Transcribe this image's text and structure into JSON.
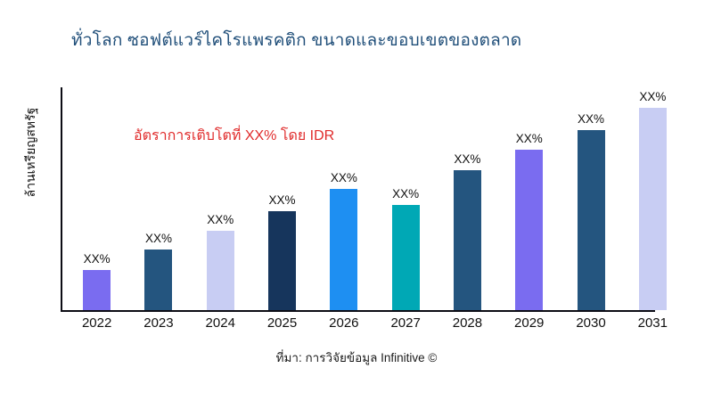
{
  "header": {
    "title": "ทั่วโลก ซอฟต์แวร์ไคโรแพรคติก ขนาดและขอบเขตของตลาด",
    "title_color": "#1f4e79"
  },
  "chart_data": {
    "type": "bar",
    "title": "ทั่วโลก ซอฟต์แวร์ไคโรแพรคติก ขนาดและขอบเขตของตลาด",
    "xlabel": "",
    "ylabel": "ล้านเหรียญสหรัฐ",
    "categories": [
      "2022",
      "2023",
      "2024",
      "2025",
      "2026",
      "2027",
      "2028",
      "2029",
      "2030",
      "2031"
    ],
    "values": [
      20,
      30,
      39,
      49,
      60,
      52,
      69,
      79,
      89,
      100
    ],
    "ylim": [
      0,
      110
    ],
    "grid": false,
    "legend": false,
    "bar_labels": [
      "XX%",
      "XX%",
      "XX%",
      "XX%",
      "XX%",
      "XX%",
      "XX%",
      "XX%",
      "XX%",
      "XX%"
    ],
    "bar_colors": [
      "#7a6cf0",
      "#24557f",
      "#c8cdf3",
      "#16355c",
      "#1e8ff2",
      "#00a8b5",
      "#24557f",
      "#7a6cf0",
      "#24557f",
      "#c8cdf3"
    ],
    "annotation": {
      "text": "อัตราการเติบโตที่ XX% โดย IDR",
      "color": "#e02b2b"
    }
  },
  "footer": {
    "source": "ที่มา: การวิจัยข้อมูล Infinitive ©"
  }
}
